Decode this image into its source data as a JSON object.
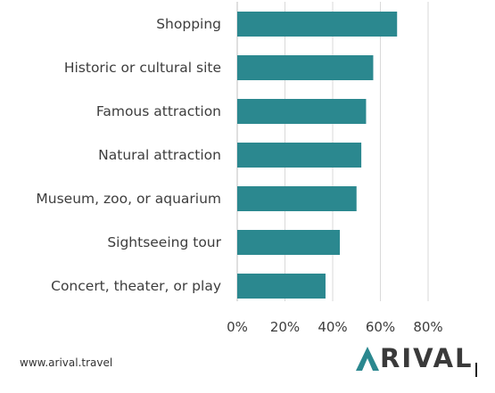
{
  "chart_data": {
    "type": "bar",
    "orientation": "horizontal",
    "categories": [
      "Shopping",
      "Historic or cultural site",
      "Famous attraction",
      "Natural attraction",
      "Museum, zoo, or aquarium",
      "Sightseeing tour",
      "Concert, theater, or play"
    ],
    "values": [
      67,
      57,
      54,
      52,
      50,
      43,
      37
    ],
    "xlim": [
      0,
      80
    ],
    "xticks": [
      "0%",
      "20%",
      "40%",
      "60%",
      "80%"
    ],
    "tick_values": [
      0,
      20,
      40,
      60,
      80
    ],
    "bar_color": "#2b888f",
    "grid": "vertical",
    "grid_color": "#d9d9d9"
  },
  "footer": {
    "url": "www.arival.travel",
    "logo_text": "ARIVAL",
    "logo_color": "#2b888f"
  }
}
